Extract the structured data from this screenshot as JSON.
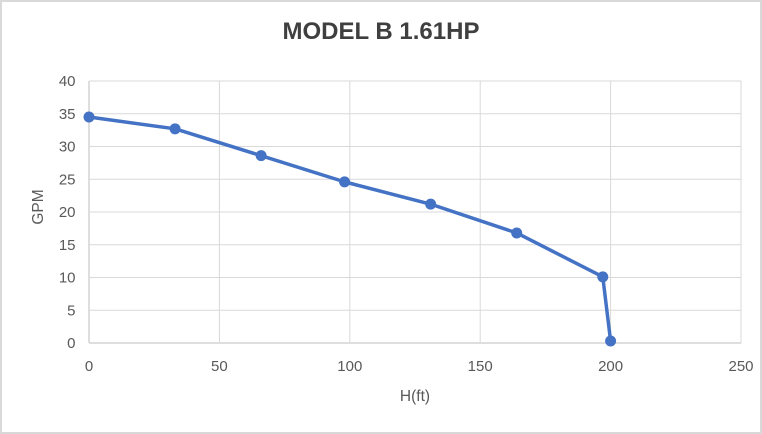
{
  "chart_data": {
    "type": "line",
    "title": "MODEL B 1.61HP",
    "xlabel": "H(ft)",
    "ylabel": "GPM",
    "x": [
      0,
      33,
      66,
      98,
      131,
      164,
      197,
      200
    ],
    "y": [
      34.5,
      32.7,
      28.6,
      24.6,
      21.2,
      16.8,
      10.1,
      0.3
    ],
    "xlim": [
      0,
      250
    ],
    "ylim": [
      0,
      40
    ],
    "x_ticks": [
      0,
      50,
      100,
      150,
      200,
      250
    ],
    "y_ticks": [
      0,
      5,
      10,
      15,
      20,
      25,
      30,
      35,
      40
    ],
    "grid": true,
    "legend": "none",
    "marker": "circle",
    "colors": {
      "series": "#4472C4",
      "gridline": "#D9D9D9",
      "axis_line": "#D9D9D9",
      "tick_label": "#595959",
      "title": "#3F3F3F",
      "background": "#FFFFFF",
      "border": "#D9D9D9"
    }
  }
}
